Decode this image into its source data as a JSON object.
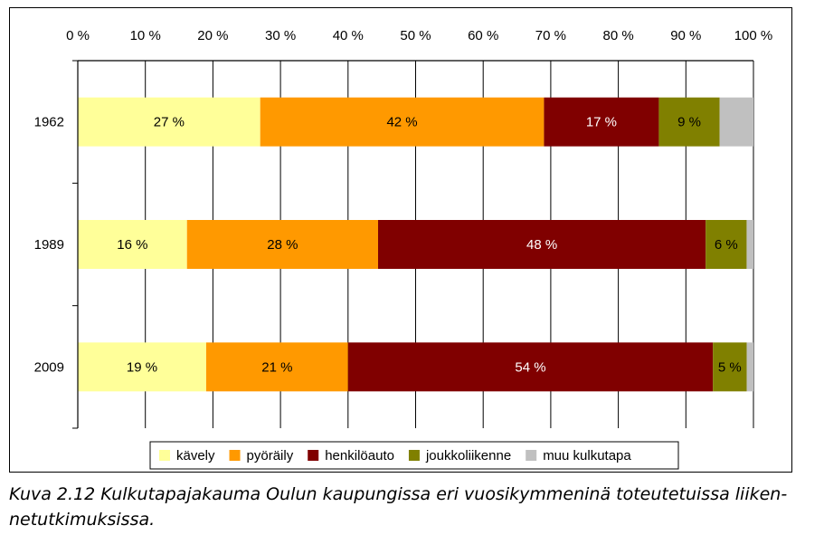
{
  "chart_data": {
    "type": "bar",
    "orientation": "horizontal",
    "stacked": true,
    "percent_stacked": true,
    "categories": [
      "1962",
      "1989",
      "2009"
    ],
    "x_ticks": [
      "0 %",
      "10 %",
      "20 %",
      "30 %",
      "40 %",
      "50 %",
      "60 %",
      "70 %",
      "80 %",
      "90 %",
      "100 %"
    ],
    "xlim": [
      0,
      100
    ],
    "x_axis_position": "top",
    "grid": "vertical",
    "legend_position": "bottom",
    "series": [
      {
        "name": "kävely",
        "color": "#FFFF99",
        "values": [
          27,
          16,
          19
        ],
        "labels": [
          "27 %",
          "16 %",
          "19 %"
        ]
      },
      {
        "name": "pyöräily",
        "color": "#FF9900",
        "values": [
          42,
          28,
          21
        ],
        "labels": [
          "42 %",
          "28 %",
          "21 %"
        ]
      },
      {
        "name": "henkilöauto",
        "color": "#800000",
        "values": [
          17,
          48,
          54
        ],
        "labels": [
          "17 %",
          "48 %",
          "54 %"
        ]
      },
      {
        "name": "joukkoliikenne",
        "color": "#808000",
        "values": [
          9,
          6,
          5
        ],
        "labels": [
          "9 %",
          "6 %",
          "5 %"
        ]
      },
      {
        "name": "muu kulkutapa",
        "color": "#C0C0C0",
        "values": [
          5,
          1,
          1
        ],
        "labels": [
          "",
          "",
          ""
        ]
      }
    ]
  },
  "caption": "Kuva 2.12 Kulkutapajakauma Oulun kaupungissa eri vuosikymmeninä toteutetuissa liiken-netutkimuksissa."
}
